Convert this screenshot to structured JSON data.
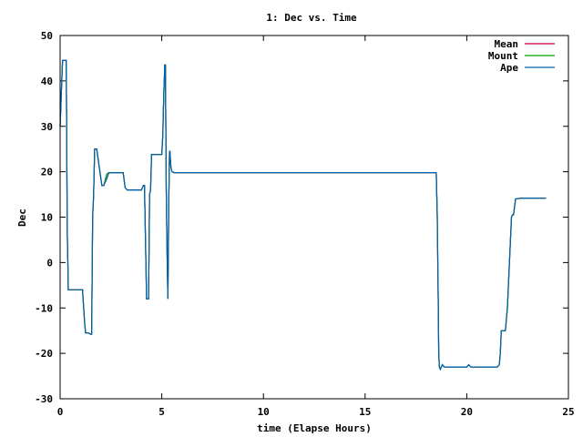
{
  "chart_data": {
    "type": "line",
    "title": "1: Dec vs. Time",
    "xlabel": "time (Elapse Hours)",
    "ylabel": "Dec",
    "xlim": [
      0,
      25
    ],
    "ylim": [
      -30,
      50
    ],
    "xticks": [
      0,
      5,
      10,
      15,
      20,
      25
    ],
    "yticks": [
      -30,
      -20,
      -10,
      0,
      10,
      20,
      30,
      40,
      50
    ],
    "grid": false,
    "legend_position": "top-right",
    "series": [
      {
        "name": "Mean",
        "color": "#c00030",
        "x": [
          0,
          0.05,
          0.08,
          0.12,
          0.15,
          0.3,
          0.32,
          0.35,
          0.38,
          0.4,
          0.45,
          1.1,
          1.2,
          1.25,
          1.3,
          1.4,
          1.5,
          1.55,
          1.6,
          1.65,
          1.7,
          1.75,
          1.8,
          2.05,
          2.15,
          2.3,
          2.4,
          2.45,
          2.5,
          3.1,
          3.2,
          3.3,
          3.5,
          4.0,
          4.1,
          4.15,
          4.2,
          4.25,
          4.3,
          4.35,
          4.4,
          4.45,
          4.5,
          5.0,
          5.05,
          5.1,
          5.15,
          5.18,
          5.22,
          5.25,
          5.3,
          5.35,
          5.38,
          5.4,
          5.45,
          5.5,
          5.6,
          5.7,
          6.0,
          18.5,
          18.55,
          18.6,
          18.62,
          18.65,
          18.7,
          18.8,
          18.9,
          19.0,
          20.0,
          20.1,
          20.2,
          21.5,
          21.6,
          21.65,
          21.7,
          21.8,
          21.9,
          22.0,
          22.2,
          22.25,
          22.3,
          22.4,
          22.7,
          22.75,
          22.8,
          22.9,
          23.0,
          23.9
        ],
        "y": [
          30,
          36,
          40,
          44.5,
          44.5,
          44.5,
          32,
          7,
          0,
          -6,
          -6,
          -6,
          -13,
          -15.5,
          -15.5,
          -15.5,
          -15.8,
          -15.8,
          10,
          15,
          25,
          25,
          25,
          17,
          17,
          19.5,
          19.8,
          19.8,
          19.8,
          19.8,
          16.5,
          16,
          16,
          16,
          17,
          17,
          5,
          -8,
          -8,
          -8,
          15,
          16,
          23.8,
          23.8,
          28,
          37,
          43.5,
          43.5,
          16,
          5,
          -8,
          15,
          24.5,
          24.5,
          21,
          20,
          19.8,
          19.8,
          19.8,
          19.8,
          10,
          -10,
          -20,
          -23,
          -23.5,
          -22.5,
          -23,
          -23,
          -23,
          -22.5,
          -23,
          -23,
          -22.5,
          -20,
          -15,
          -15,
          -15,
          -10,
          10,
          10.5,
          10.5,
          14,
          14.2,
          14.2,
          14.2,
          14.2,
          14.2,
          14.2
        ]
      },
      {
        "name": "Mount",
        "color": "#00a000",
        "x": [
          0,
          0.05,
          0.08,
          0.12,
          0.15,
          0.3,
          0.32,
          0.35,
          0.38,
          0.4,
          0.45,
          1.1,
          1.2,
          1.25,
          1.3,
          1.4,
          1.5,
          1.55,
          1.6,
          1.65,
          1.7,
          1.75,
          1.8,
          2.05,
          2.15,
          2.3,
          2.4,
          2.45,
          2.5,
          3.1,
          3.2,
          3.3,
          3.5,
          4.0,
          4.1,
          4.15,
          4.2,
          4.25,
          4.3,
          4.35,
          4.4,
          4.45,
          4.5,
          5.0,
          5.05,
          5.1,
          5.15,
          5.18,
          5.22,
          5.25,
          5.3,
          5.35,
          5.38,
          5.4,
          5.45,
          5.5,
          5.6,
          5.7,
          6.0,
          18.5,
          18.55,
          18.6,
          18.62,
          18.65,
          18.7,
          18.8,
          18.9,
          19.0,
          20.0,
          20.1,
          20.2,
          21.5,
          21.6,
          21.65,
          21.7,
          21.8,
          21.9,
          22.0,
          22.2,
          22.25,
          22.3,
          22.4,
          22.7,
          22.75,
          22.8,
          22.9,
          23.0,
          23.9
        ],
        "y": [
          30,
          36,
          40,
          44.5,
          44.5,
          44.5,
          32,
          7,
          0,
          -6,
          -6,
          -6,
          -13,
          -15.5,
          -15.5,
          -15.5,
          -15.8,
          -15.8,
          10,
          15,
          25,
          25,
          25,
          17,
          17,
          19.5,
          19.8,
          19.8,
          19.8,
          19.8,
          16.5,
          16,
          16,
          16,
          17,
          17,
          5,
          -8,
          -8,
          -8,
          15,
          16,
          23.8,
          23.8,
          28,
          37,
          43.5,
          43.5,
          16,
          5,
          -8,
          15,
          24.5,
          24.5,
          21,
          20,
          19.8,
          19.8,
          19.8,
          19.8,
          11,
          -12,
          -19,
          -23,
          -23.5,
          -22.5,
          -23,
          -23,
          -23,
          -22.5,
          -23,
          -23,
          -22.5,
          -20,
          -15,
          -15,
          -15,
          -10,
          10,
          10.5,
          10.5,
          14,
          14.2,
          14.2,
          14.2,
          14.2,
          14.2,
          14.2
        ]
      },
      {
        "name": "Ape",
        "color": "#0060b0",
        "x": [
          0,
          0.05,
          0.08,
          0.12,
          0.15,
          0.3,
          0.32,
          0.35,
          0.38,
          0.4,
          0.45,
          1.1,
          1.2,
          1.25,
          1.3,
          1.4,
          1.5,
          1.55,
          1.6,
          1.65,
          1.7,
          1.75,
          1.8,
          2.05,
          2.15,
          2.3,
          2.4,
          2.45,
          2.5,
          3.1,
          3.2,
          3.3,
          3.5,
          4.0,
          4.1,
          4.15,
          4.2,
          4.25,
          4.3,
          4.35,
          4.4,
          4.45,
          4.5,
          5.0,
          5.05,
          5.1,
          5.15,
          5.18,
          5.22,
          5.25,
          5.3,
          5.35,
          5.38,
          5.4,
          5.45,
          5.5,
          5.6,
          5.7,
          6.0,
          18.5,
          18.55,
          18.6,
          18.62,
          18.65,
          18.7,
          18.8,
          18.9,
          19.0,
          20.0,
          20.1,
          20.2,
          21.5,
          21.6,
          21.65,
          21.7,
          21.8,
          21.9,
          22.0,
          22.2,
          22.25,
          22.3,
          22.4,
          22.7,
          22.75,
          22.8,
          22.9,
          23.0,
          23.9
        ],
        "y": [
          30,
          36,
          40,
          44.5,
          44.5,
          44.5,
          32,
          7,
          0,
          -6,
          -6,
          -6,
          -13,
          -15.5,
          -15.5,
          -15.5,
          -15.8,
          -15.8,
          10,
          15,
          25,
          25,
          25,
          17,
          17,
          18.5,
          19.8,
          19.8,
          19.8,
          19.8,
          16.5,
          16,
          16,
          16,
          17,
          17,
          5,
          -8,
          -8,
          -8,
          15,
          16,
          23.8,
          23.8,
          28,
          37,
          43.5,
          43.5,
          16,
          5,
          -8,
          15,
          24.5,
          24.5,
          21,
          20,
          19.8,
          19.8,
          19.8,
          19.8,
          10,
          -10,
          -20,
          -23,
          -23.5,
          -22.5,
          -23,
          -23,
          -23,
          -22.5,
          -23,
          -23,
          -22.5,
          -20,
          -15,
          -15,
          -15,
          -10,
          10,
          10.5,
          10.5,
          14,
          14.2,
          14.2,
          14.2,
          14.2,
          14.2,
          14.2
        ]
      }
    ]
  }
}
